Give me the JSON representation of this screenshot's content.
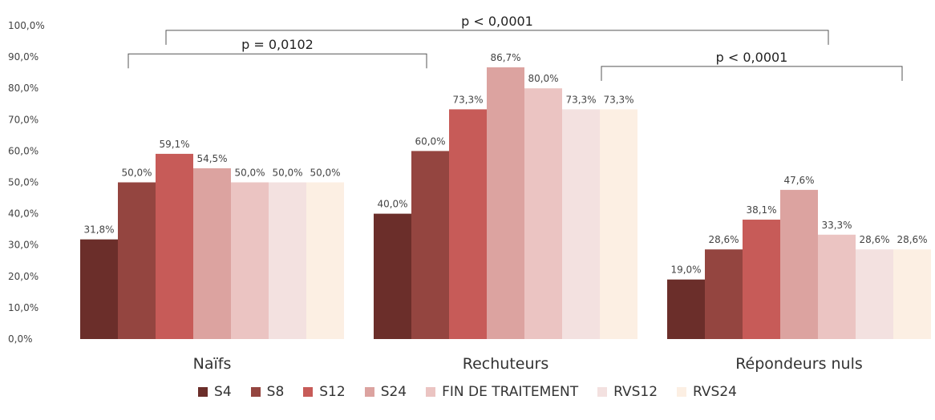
{
  "chart_data": {
    "type": "bar",
    "categories": [
      "Naïfs",
      "Rechuteurs",
      "Répondeurs nuls"
    ],
    "series": [
      {
        "name": "S4",
        "color": "#6b2e2a",
        "values": [
          31.8,
          40.0,
          19.0
        ],
        "labels": [
          "31,8%",
          "40,0%",
          "19,0%"
        ]
      },
      {
        "name": "S8",
        "color": "#944540",
        "values": [
          50.0,
          60.0,
          28.6
        ],
        "labels": [
          "50,0%",
          "60,0%",
          "28,6%"
        ]
      },
      {
        "name": "S12",
        "color": "#c75b58",
        "values": [
          59.1,
          73.3,
          38.1
        ],
        "labels": [
          "59,1%",
          "73,3%",
          "38,1%"
        ]
      },
      {
        "name": "S24",
        "color": "#dca3a0",
        "values": [
          54.5,
          86.7,
          47.6
        ],
        "labels": [
          "54,5%",
          "86,7%",
          "47,6%"
        ]
      },
      {
        "name": "FIN DE TRAITEMENT",
        "color": "#ebc4c2",
        "values": [
          50.0,
          80.0,
          33.3
        ],
        "labels": [
          "50,0%",
          "80,0%",
          "33,3%"
        ]
      },
      {
        "name": "RVS12",
        "color": "#f3e1e0",
        "values": [
          50.0,
          73.3,
          28.6
        ],
        "labels": [
          "50,0%",
          "73,3%",
          "28,6%"
        ]
      },
      {
        "name": "RVS24",
        "color": "#fcefe3",
        "values": [
          50.0,
          73.3,
          28.6
        ],
        "labels": [
          "50,0%",
          "73,3%",
          "28,6%"
        ]
      }
    ],
    "y_ticks": [
      "0,0%",
      "10,0%",
      "20,0%",
      "30,0%",
      "40,0%",
      "50,0%",
      "60,0%",
      "70,0%",
      "80,0%",
      "90,0%",
      "100,0%"
    ],
    "ylim": [
      0,
      100
    ],
    "grid": false,
    "legend_position": "bottom",
    "annotations": [
      {
        "text": "p = 0,0102",
        "from_category": 0,
        "to_category": 1,
        "level": 91
      },
      {
        "text": "p < 0,0001",
        "from_category": 1,
        "to_category": 2,
        "level": 87
      },
      {
        "text": "p < 0,0001",
        "from_category": 0,
        "to_category": 2,
        "level": 98.5
      }
    ]
  }
}
